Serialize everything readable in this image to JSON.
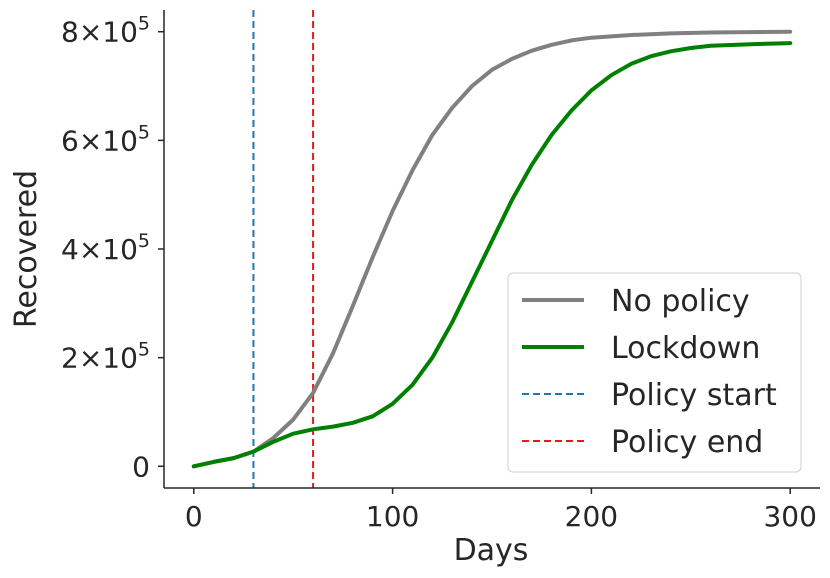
{
  "chart_data": {
    "type": "line",
    "title": "",
    "xlabel": "Days",
    "ylabel": "Recovered",
    "xlim": [
      -15,
      315
    ],
    "ylim": [
      -40000,
      840000
    ],
    "xticks": [
      0,
      100,
      200,
      300
    ],
    "xtick_labels": [
      "0",
      "100",
      "200",
      "300"
    ],
    "yticks": [
      0,
      200000,
      400000,
      600000,
      800000
    ],
    "ytick_labels": [
      {
        "mantissa": "0",
        "exp": ""
      },
      {
        "mantissa": "2×10",
        "exp": "5"
      },
      {
        "mantissa": "4×10",
        "exp": "5"
      },
      {
        "mantissa": "6×10",
        "exp": "5"
      },
      {
        "mantissa": "8×10",
        "exp": "5"
      }
    ],
    "grid": false,
    "legend_position": "lower-right",
    "series": [
      {
        "name": "No policy",
        "color": "#808080",
        "style": "solid",
        "x": [
          0,
          10,
          20,
          30,
          40,
          50,
          60,
          70,
          80,
          90,
          100,
          110,
          120,
          130,
          140,
          150,
          160,
          170,
          180,
          190,
          200,
          220,
          240,
          260,
          280,
          300
        ],
        "y": [
          0,
          8000,
          15000,
          27000,
          52000,
          86000,
          135000,
          208000,
          295000,
          385000,
          470000,
          545000,
          610000,
          660000,
          700000,
          730000,
          750000,
          765000,
          776000,
          784000,
          789000,
          794000,
          797000,
          798500,
          799300,
          800000
        ]
      },
      {
        "name": "Lockdown",
        "color": "#008000",
        "style": "solid",
        "x": [
          0,
          10,
          20,
          30,
          40,
          50,
          60,
          70,
          80,
          90,
          100,
          110,
          120,
          130,
          140,
          150,
          160,
          170,
          180,
          190,
          200,
          210,
          220,
          230,
          240,
          250,
          260,
          280,
          300
        ],
        "y": [
          0,
          8000,
          15000,
          27000,
          45000,
          60000,
          68000,
          73000,
          80000,
          92000,
          115000,
          150000,
          200000,
          265000,
          340000,
          415000,
          490000,
          555000,
          610000,
          655000,
          692000,
          720000,
          741000,
          755000,
          764000,
          770000,
          774000,
          777000,
          779000
        ]
      }
    ],
    "vlines": [
      {
        "name": "Policy start",
        "x": 30,
        "color": "#1f77b4",
        "style": "dashed"
      },
      {
        "name": "Policy end",
        "x": 60,
        "color": "#e41a1c",
        "style": "dashed"
      }
    ]
  }
}
